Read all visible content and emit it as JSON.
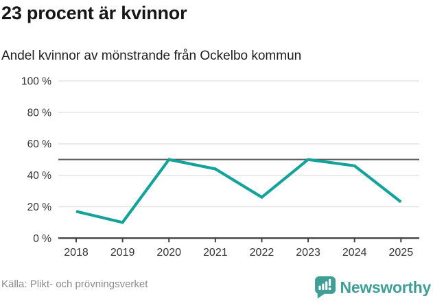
{
  "title": "23 procent är kvinnor",
  "subtitle": "Andel kvinnor av mönstrande från Ockelbo kommun",
  "source": "Källa: Plikt- och prövningsverket",
  "brand": {
    "name": "Newsworthy",
    "logo_icon": "speech-bubble-bar-chart",
    "color": "#3f9e96"
  },
  "chart_data": {
    "type": "line",
    "title": "23 procent är kvinnor",
    "subtitle": "Andel kvinnor av mönstrande från Ockelbo kommun",
    "categories": [
      "2018",
      "2019",
      "2020",
      "2021",
      "2022",
      "2023",
      "2024",
      "2025"
    ],
    "values": [
      17,
      10,
      50,
      44,
      26,
      50,
      46,
      23
    ],
    "unit": "%",
    "ylim": [
      0,
      100
    ],
    "yticks": [
      0,
      20,
      40,
      60,
      80,
      100
    ],
    "ytick_labels": [
      "0 %",
      "20 %",
      "40 %",
      "60 %",
      "80 %",
      "100 %"
    ],
    "reference_line": 50,
    "grid": true,
    "legend": "none",
    "colors": {
      "line": "#14a39a",
      "gridline": "#e3e3e3",
      "reference_line": "#595959",
      "axis": "#414042",
      "tick_label": "#333333"
    }
  }
}
